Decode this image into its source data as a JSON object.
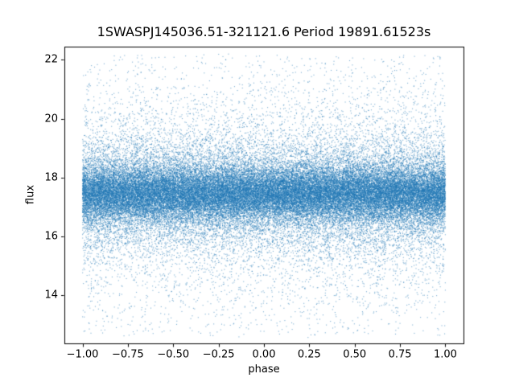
{
  "chart_data": {
    "type": "scatter",
    "title": "1SWASPJ145036.51-321121.6 Period 19891.61523s",
    "xlabel": "phase",
    "ylabel": "flux",
    "xlim": [
      -1.1,
      1.1
    ],
    "ylim": [
      12.35,
      22.45
    ],
    "x_ticks": {
      "values": [
        -1.0,
        -0.75,
        -0.5,
        -0.25,
        0.0,
        0.25,
        0.5,
        0.75,
        1.0
      ],
      "labels": [
        "−1.00",
        "−0.75",
        "−0.50",
        "−0.25",
        "0.00",
        "0.25",
        "0.50",
        "0.75",
        "1.00"
      ]
    },
    "y_ticks": {
      "values": [
        14,
        16,
        18,
        20,
        22
      ],
      "labels": [
        "14",
        "16",
        "18",
        "20",
        "22"
      ]
    },
    "grid": false,
    "marker_color": "#1f77b4",
    "marker_size_px": 1.1,
    "marker_alpha": 0.6,
    "points": {
      "n": 60000,
      "seed": 42,
      "x_distribution": "uniform",
      "x_range": [
        -1.0,
        1.0
      ],
      "flux_center": 17.45,
      "flux_components": [
        {
          "fraction": 0.55,
          "sigma": 0.45
        },
        {
          "fraction": 0.3,
          "sigma": 0.95
        },
        {
          "fraction": 0.12,
          "sigma": 1.8
        },
        {
          "fraction": 0.03,
          "uniform_range": [
            12.6,
            22.15
          ]
        }
      ],
      "flux_clip": [
        12.55,
        22.2
      ]
    }
  }
}
